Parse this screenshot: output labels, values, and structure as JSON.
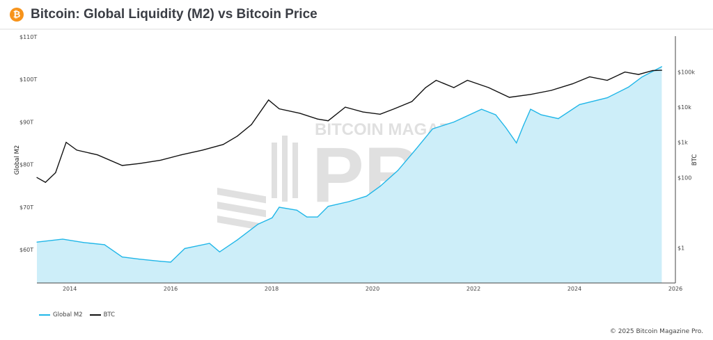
{
  "header": {
    "title": "Bitcoin: Global Liquidity (M2) vs Bitcoin Price",
    "logo_icon": "bitcoin-icon",
    "logo_glyph": "₿"
  },
  "watermark": {
    "line1": "BITCOIN MAGAZINE",
    "line2": "PRO"
  },
  "footer": "© 2025 Bitcoin Magazine Pro.",
  "chart_data": {
    "type": "line",
    "title": "Bitcoin: Global Liquidity (M2) vs Bitcoin Price",
    "x_ticks": [
      "2014",
      "2016",
      "2018",
      "2020",
      "2022",
      "2024",
      "2026"
    ],
    "x_tick_values": [
      2014,
      2016,
      2018,
      2020,
      2022,
      2024,
      2026
    ],
    "xlim": [
      2013.35,
      2026
    ],
    "y_left": {
      "label": "Global M2",
      "ticks": [
        "$60T",
        "$70T",
        "$80T",
        "$90T",
        "$100T",
        "$110T"
      ],
      "tick_values": [
        60,
        70,
        80,
        90,
        100,
        110
      ],
      "range": [
        52.2,
        110
      ],
      "unit": "trillion USD"
    },
    "y_right": {
      "label": "BTC",
      "scale": "log",
      "ticks": [
        "$1",
        "$100",
        "$1k",
        "$10k",
        "$100k"
      ],
      "tick_values": [
        1,
        100,
        1000,
        10000,
        100000
      ],
      "range": [
        0.1,
        1000000
      ]
    },
    "legend": {
      "position": "bottom-left"
    },
    "series": [
      {
        "name": "Global M2",
        "axis": "left",
        "color": "#1fb6e8",
        "fill": "#cdeef9",
        "x": [
          2013.35,
          2013.86,
          2014.28,
          2014.69,
          2015.04,
          2015.38,
          2015.8,
          2016.0,
          2016.28,
          2016.77,
          2016.97,
          2017.32,
          2017.73,
          2018.01,
          2018.15,
          2018.5,
          2018.7,
          2018.91,
          2019.12,
          2019.53,
          2019.88,
          2020.15,
          2020.5,
          2020.85,
          2021.19,
          2021.61,
          2022.16,
          2022.44,
          2022.64,
          2022.85,
          2022.99,
          2023.13,
          2023.34,
          2023.68,
          2024.1,
          2024.65,
          2025.07,
          2025.34,
          2025.73
        ],
        "y": [
          61.8,
          62.5,
          61.7,
          61.2,
          58.3,
          57.8,
          57.3,
          57.1,
          60.3,
          61.5,
          59.5,
          62.3,
          66,
          67.5,
          70,
          69.3,
          67.7,
          67.7,
          70.2,
          71.3,
          72.6,
          74.9,
          78.6,
          83.5,
          88.4,
          90,
          93,
          91.7,
          88.7,
          85.1,
          89.2,
          93,
          91.7,
          90.8,
          94.1,
          95.7,
          98.2,
          100.6,
          103
        ]
      },
      {
        "name": "BTC",
        "axis": "right",
        "color": "#111111",
        "x": [
          2013.35,
          2013.52,
          2013.72,
          2013.93,
          2014.14,
          2014.55,
          2015.04,
          2015.38,
          2015.8,
          2016.21,
          2016.63,
          2017.04,
          2017.32,
          2017.6,
          2017.94,
          2018.15,
          2018.56,
          2018.91,
          2019.12,
          2019.46,
          2019.81,
          2020.15,
          2020.43,
          2020.78,
          2021.05,
          2021.26,
          2021.61,
          2021.88,
          2022.3,
          2022.71,
          2023.13,
          2023.54,
          2023.96,
          2024.3,
          2024.65,
          2025.0,
          2025.27,
          2025.55,
          2025.73
        ],
        "y": [
          100,
          73,
          137,
          1000,
          600,
          440,
          220,
          250,
          310,
          440,
          600,
          870,
          1500,
          3200,
          16000,
          9000,
          6700,
          4600,
          4100,
          10000,
          7300,
          6300,
          9000,
          14500,
          36000,
          58000,
          36000,
          58000,
          36000,
          19000,
          23000,
          30000,
          46000,
          73000,
          58000,
          100000,
          85000,
          110000,
          112000
        ]
      }
    ]
  }
}
